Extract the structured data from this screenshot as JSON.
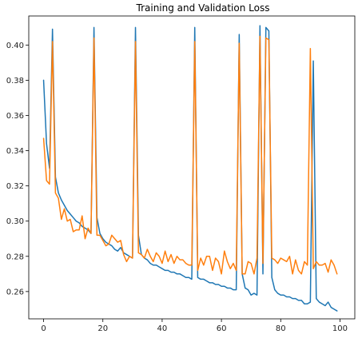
{
  "chart_data": {
    "type": "line",
    "title": "Training and Validation Loss",
    "xlabel": "",
    "ylabel": "",
    "xlim": [
      -5,
      105
    ],
    "ylim": [
      0.2445,
      0.4165
    ],
    "xticks": [
      0,
      20,
      40,
      60,
      80,
      100
    ],
    "yticks": [
      0.26,
      0.28,
      0.3,
      0.32,
      0.34,
      0.36,
      0.38,
      0.4
    ],
    "xtick_labels": [
      "0",
      "20",
      "40",
      "60",
      "80",
      "100"
    ],
    "ytick_labels": [
      "0.26",
      "0.28",
      "0.30",
      "0.32",
      "0.34",
      "0.36",
      "0.38",
      "0.40"
    ],
    "grid": false,
    "legend": "none",
    "series": [
      {
        "color": "#1f77b4",
        "x": [
          0,
          1,
          2,
          3,
          4,
          5,
          6,
          7,
          8,
          9,
          10,
          11,
          12,
          13,
          14,
          15,
          16,
          17,
          18,
          19,
          20,
          21,
          22,
          23,
          24,
          25,
          26,
          27,
          28,
          29,
          30,
          31,
          32,
          33,
          34,
          35,
          36,
          37,
          38,
          39,
          40,
          41,
          42,
          43,
          44,
          45,
          46,
          47,
          48,
          49,
          50,
          51,
          52,
          53,
          54,
          55,
          56,
          57,
          58,
          59,
          60,
          61,
          62,
          63,
          64,
          65,
          66,
          67,
          68,
          69,
          70,
          71,
          72,
          73,
          74,
          75,
          76,
          77,
          78,
          79,
          80,
          81,
          82,
          83,
          84,
          85,
          86,
          87,
          88,
          89,
          90,
          91,
          92,
          93,
          94,
          95,
          96,
          97,
          98,
          99
        ],
        "y": [
          0.38,
          0.344,
          0.33,
          0.409,
          0.325,
          0.316,
          0.312,
          0.309,
          0.306,
          0.304,
          0.302,
          0.3,
          0.299,
          0.297,
          0.296,
          0.295,
          0.293,
          0.41,
          0.302,
          0.293,
          0.29,
          0.288,
          0.287,
          0.286,
          0.284,
          0.283,
          0.285,
          0.282,
          0.281,
          0.28,
          0.279,
          0.41,
          0.292,
          0.281,
          0.279,
          0.278,
          0.276,
          0.275,
          0.275,
          0.274,
          0.273,
          0.272,
          0.272,
          0.271,
          0.271,
          0.27,
          0.27,
          0.269,
          0.268,
          0.268,
          0.267,
          0.41,
          0.268,
          0.267,
          0.267,
          0.266,
          0.265,
          0.265,
          0.264,
          0.264,
          0.263,
          0.263,
          0.262,
          0.262,
          0.261,
          0.261,
          0.406,
          0.27,
          0.262,
          0.261,
          0.258,
          0.259,
          0.258,
          0.411,
          0.27,
          0.41,
          0.408,
          0.268,
          0.261,
          0.259,
          0.258,
          0.258,
          0.257,
          0.257,
          0.256,
          0.256,
          0.255,
          0.255,
          0.253,
          0.253,
          0.254,
          0.391,
          0.256,
          0.254,
          0.253,
          0.252,
          0.254,
          0.251,
          0.25,
          0.249
        ]
      },
      {
        "color": "#ff7f0e",
        "x": [
          0,
          1,
          2,
          3,
          4,
          5,
          6,
          7,
          8,
          9,
          10,
          11,
          12,
          13,
          14,
          15,
          16,
          17,
          18,
          19,
          20,
          21,
          22,
          23,
          24,
          25,
          26,
          27,
          28,
          29,
          30,
          31,
          32,
          33,
          34,
          35,
          36,
          37,
          38,
          39,
          40,
          41,
          42,
          43,
          44,
          45,
          46,
          47,
          48,
          49,
          50,
          51,
          52,
          53,
          54,
          55,
          56,
          57,
          58,
          59,
          60,
          61,
          62,
          63,
          64,
          65,
          66,
          67,
          68,
          69,
          70,
          71,
          72,
          73,
          74,
          75,
          76,
          77,
          78,
          79,
          80,
          81,
          82,
          83,
          84,
          85,
          86,
          87,
          88,
          89,
          90,
          91,
          92,
          93,
          94,
          95,
          96,
          97,
          98,
          99
        ],
        "y": [
          0.347,
          0.323,
          0.321,
          0.402,
          0.316,
          0.313,
          0.301,
          0.307,
          0.3,
          0.301,
          0.294,
          0.295,
          0.295,
          0.303,
          0.29,
          0.296,
          0.293,
          0.404,
          0.292,
          0.292,
          0.289,
          0.286,
          0.287,
          0.292,
          0.29,
          0.288,
          0.289,
          0.281,
          0.277,
          0.28,
          0.279,
          0.402,
          0.282,
          0.281,
          0.279,
          0.284,
          0.28,
          0.277,
          0.282,
          0.28,
          0.276,
          0.283,
          0.277,
          0.281,
          0.276,
          0.28,
          0.278,
          0.278,
          0.276,
          0.275,
          0.275,
          0.402,
          0.272,
          0.279,
          0.275,
          0.28,
          0.28,
          0.272,
          0.279,
          0.277,
          0.27,
          0.283,
          0.277,
          0.273,
          0.276,
          0.272,
          0.401,
          0.27,
          0.27,
          0.277,
          0.276,
          0.27,
          0.279,
          0.405,
          0.276,
          0.404,
          0.403,
          0.279,
          0.278,
          0.276,
          0.279,
          0.278,
          0.277,
          0.28,
          0.27,
          0.278,
          0.272,
          0.27,
          0.277,
          0.275,
          0.398,
          0.273,
          0.277,
          0.275,
          0.275,
          0.276,
          0.271,
          0.278,
          0.275,
          0.27
        ]
      }
    ]
  }
}
